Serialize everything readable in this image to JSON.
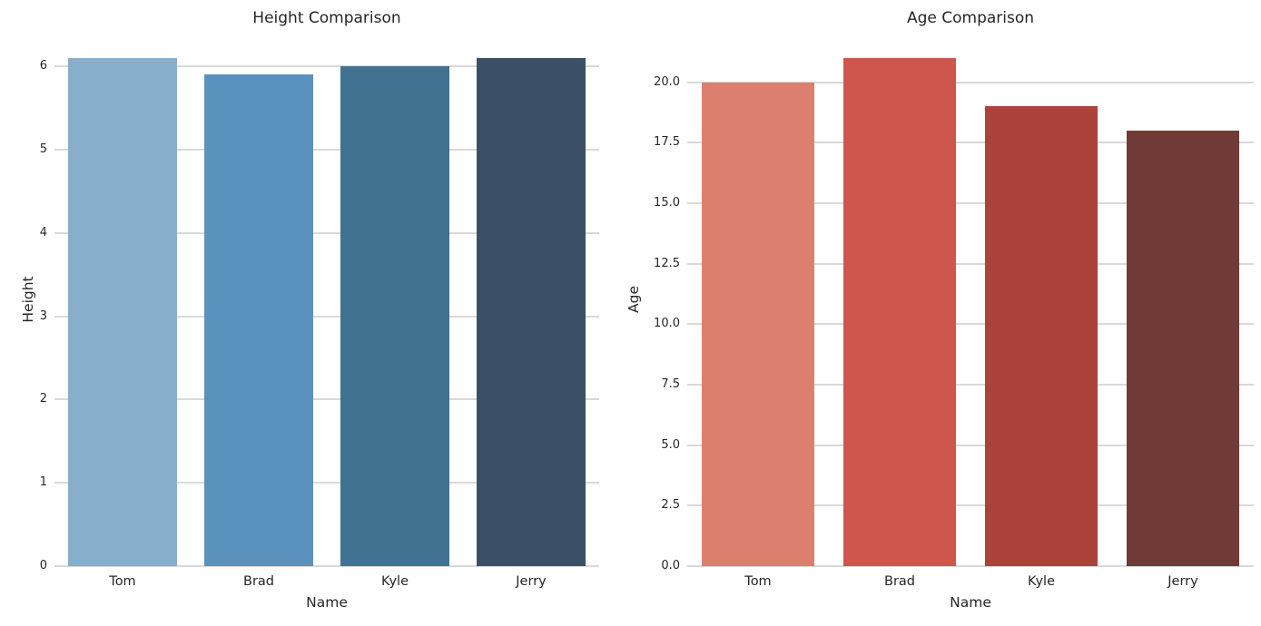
{
  "figure": {
    "background": "#ffffff",
    "grid_color": "#d9d9d9",
    "text_color": "#262626"
  },
  "chart_data": [
    {
      "type": "bar",
      "title": "Height Comparison",
      "xlabel": "Name",
      "ylabel": "Height",
      "categories": [
        "Tom",
        "Brad",
        "Kyle",
        "Jerry"
      ],
      "values": [
        6.1,
        5.9,
        6.0,
        6.1
      ],
      "bar_colors": [
        "#87aeca",
        "#5b92bd",
        "#427292",
        "#3b5066"
      ],
      "yticks": [
        0,
        1,
        2,
        3,
        4,
        5,
        6
      ],
      "ytick_labels": [
        "0",
        "1",
        "2",
        "3",
        "4",
        "5",
        "6"
      ],
      "ylim": [
        0,
        6.405
      ],
      "grid": true,
      "legend": false,
      "bar_width_fraction": 0.8
    },
    {
      "type": "bar",
      "title": "Age Comparison",
      "xlabel": "Name",
      "ylabel": "Age",
      "categories": [
        "Tom",
        "Brad",
        "Kyle",
        "Jerry"
      ],
      "values": [
        20,
        21,
        19,
        18
      ],
      "bar_colors": [
        "#dd7f6f",
        "#cd574c",
        "#ab433c",
        "#703a36"
      ],
      "yticks": [
        0,
        2.5,
        5,
        7.5,
        10,
        12.5,
        15,
        17.5,
        20
      ],
      "ytick_labels": [
        "0.0",
        "2.5",
        "5.0",
        "7.5",
        "10.0",
        "12.5",
        "15.0",
        "17.5",
        "20.0"
      ],
      "ylim": [
        0,
        22.05
      ],
      "grid": true,
      "legend": false,
      "bar_width_fraction": 0.8
    }
  ]
}
